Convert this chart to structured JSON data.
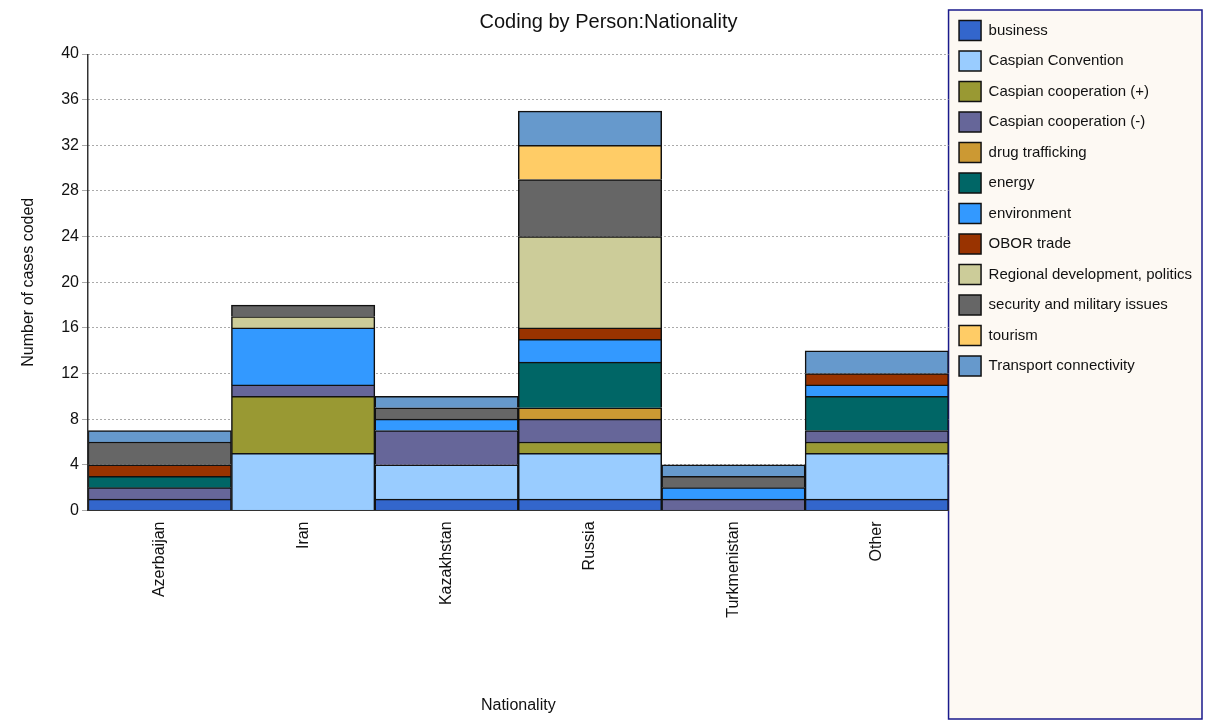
{
  "chart_data": {
    "type": "bar",
    "stacked": true,
    "title": "Coding by Person:Nationality",
    "xlabel": "Nationality",
    "ylabel": "Number of cases coded",
    "categories": [
      "Azerbaijan",
      "Iran",
      "Kazakhstan",
      "Russia",
      "Turkmenistan",
      "Other"
    ],
    "ylim": [
      0,
      40
    ],
    "yticks": [
      0,
      4,
      8,
      12,
      16,
      20,
      24,
      28,
      32,
      36,
      40
    ],
    "grid": "y",
    "legend": "right",
    "series": [
      {
        "name": "business",
        "color": "#3366cc",
        "values": [
          1,
          0,
          1,
          1,
          0,
          1
        ]
      },
      {
        "name": "Caspian Convention",
        "color": "#99ccff",
        "values": [
          0,
          5,
          3,
          4,
          0,
          4
        ]
      },
      {
        "name": "Caspian cooperation (+)",
        "color": "#999933",
        "values": [
          0,
          5,
          0,
          1,
          0,
          1
        ]
      },
      {
        "name": "Caspian cooperation (-)",
        "color": "#666699",
        "values": [
          1,
          1,
          3,
          2,
          1,
          1
        ]
      },
      {
        "name": "drug trafficking",
        "color": "#cc9933",
        "values": [
          0,
          0,
          0,
          1,
          0,
          0
        ]
      },
      {
        "name": "energy",
        "color": "#006666",
        "values": [
          1,
          0,
          0,
          4,
          0,
          3
        ]
      },
      {
        "name": "environment",
        "color": "#3399ff",
        "values": [
          0,
          5,
          1,
          2,
          1,
          1
        ]
      },
      {
        "name": "OBOR trade",
        "color": "#993300",
        "values": [
          1,
          0,
          0,
          1,
          0,
          1
        ]
      },
      {
        "name": "Regional development, politics",
        "color": "#cccc99",
        "values": [
          0,
          1,
          0,
          8,
          0,
          0
        ]
      },
      {
        "name": "security and military issues",
        "color": "#666666",
        "values": [
          2,
          1,
          1,
          5,
          1,
          0
        ]
      },
      {
        "name": "tourism",
        "color": "#ffcc66",
        "values": [
          0,
          0,
          0,
          3,
          0,
          0
        ]
      },
      {
        "name": "Transport connectivity",
        "color": "#6699cc",
        "values": [
          1,
          0,
          1,
          3,
          1,
          2
        ]
      }
    ]
  }
}
